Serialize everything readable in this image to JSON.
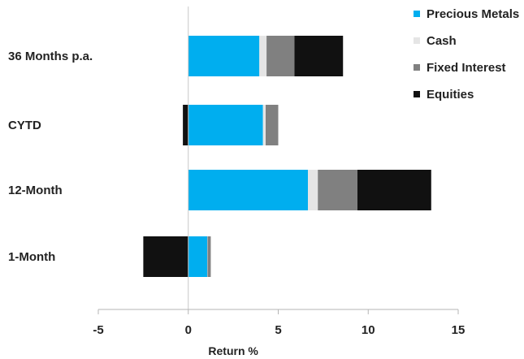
{
  "chart_data": {
    "type": "bar",
    "orientation": "horizontal",
    "stacked": true,
    "title": "",
    "xlabel": "Return %",
    "ylabel": "",
    "xlim": [
      -5,
      15
    ],
    "xticks": [
      -5,
      0,
      5,
      10,
      15
    ],
    "categories": [
      "36 Months p.a.",
      "CYTD",
      "12-Month",
      "1-Month"
    ],
    "series": [
      {
        "name": "Precious Metals",
        "color": "#00AEEF",
        "values": [
          3.95,
          4.15,
          6.65,
          1.05
        ]
      },
      {
        "name": "Cash",
        "color": "#E5E5E5",
        "values": [
          0.4,
          0.15,
          0.55,
          0.02
        ]
      },
      {
        "name": "Fixed Interest",
        "color": "#808080",
        "values": [
          1.55,
          0.7,
          2.2,
          0.18
        ]
      },
      {
        "name": "Equities",
        "color": "#111111",
        "values": [
          2.7,
          -0.3,
          4.1,
          -2.5
        ]
      }
    ],
    "legend_position": "top-right",
    "grid": false
  }
}
